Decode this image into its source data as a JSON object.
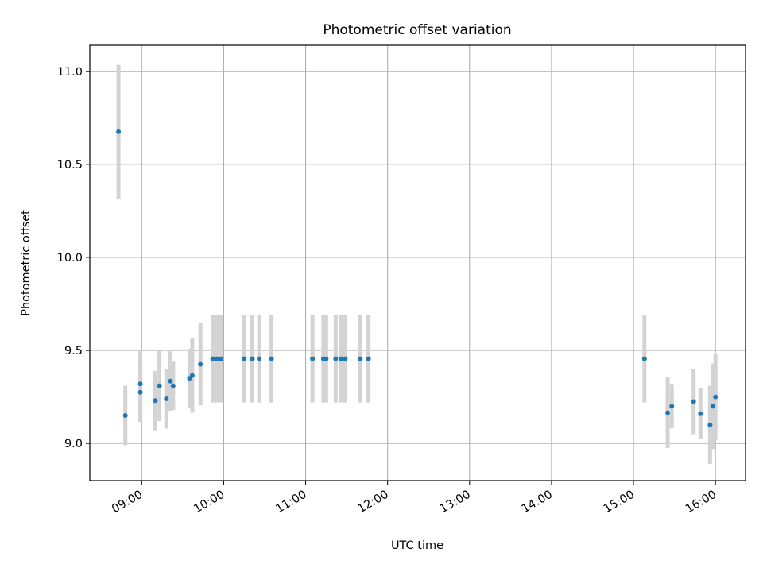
{
  "chart_data": {
    "type": "scatter",
    "title": "Photometric offset variation",
    "xlabel": "UTC time",
    "ylabel": "Photometric offset",
    "ylim": [
      8.8,
      11.14
    ],
    "xlim": [
      "08:22",
      "16:22"
    ],
    "grid": true,
    "x_ticks": [
      "09:00",
      "10:00",
      "11:00",
      "12:00",
      "13:00",
      "14:00",
      "15:00",
      "16:00"
    ],
    "y_ticks": [
      9.0,
      9.5,
      10.0,
      10.5,
      11.0
    ],
    "y_tick_labels": [
      "9.0",
      "9.5",
      "10.0",
      "10.5",
      "11.0"
    ],
    "marker_color": "#1f77b4",
    "errorbar_color": "#d3d3d3",
    "points": [
      {
        "t": "08:43",
        "y": 10.675,
        "err": 0.36
      },
      {
        "t": "08:48",
        "y": 9.15,
        "err": 0.16
      },
      {
        "t": "08:59",
        "y": 9.32,
        "err": 0.18
      },
      {
        "t": "08:59",
        "y": 9.275,
        "err": 0.16
      },
      {
        "t": "09:10",
        "y": 9.23,
        "err": 0.16
      },
      {
        "t": "09:13",
        "y": 9.31,
        "err": 0.19
      },
      {
        "t": "09:18",
        "y": 9.24,
        "err": 0.16
      },
      {
        "t": "09:21",
        "y": 9.335,
        "err": 0.16
      },
      {
        "t": "09:23",
        "y": 9.31,
        "err": 0.13
      },
      {
        "t": "09:35",
        "y": 9.35,
        "err": 0.16
      },
      {
        "t": "09:37",
        "y": 9.365,
        "err": 0.2
      },
      {
        "t": "09:43",
        "y": 9.425,
        "err": 0.22
      },
      {
        "t": "09:52",
        "y": 9.455,
        "err": 0.235
      },
      {
        "t": "09:55",
        "y": 9.455,
        "err": 0.235
      },
      {
        "t": "09:58",
        "y": 9.455,
        "err": 0.235
      },
      {
        "t": "10:15",
        "y": 9.455,
        "err": 0.235
      },
      {
        "t": "10:21",
        "y": 9.455,
        "err": 0.235
      },
      {
        "t": "10:26",
        "y": 9.455,
        "err": 0.235
      },
      {
        "t": "10:35",
        "y": 9.455,
        "err": 0.235
      },
      {
        "t": "11:05",
        "y": 9.455,
        "err": 0.235
      },
      {
        "t": "11:13",
        "y": 9.455,
        "err": 0.235
      },
      {
        "t": "11:15",
        "y": 9.455,
        "err": 0.235
      },
      {
        "t": "11:22",
        "y": 9.455,
        "err": 0.235
      },
      {
        "t": "11:26",
        "y": 9.455,
        "err": 0.235
      },
      {
        "t": "11:29",
        "y": 9.455,
        "err": 0.235
      },
      {
        "t": "11:40",
        "y": 9.455,
        "err": 0.235
      },
      {
        "t": "11:46",
        "y": 9.455,
        "err": 0.235
      },
      {
        "t": "15:08",
        "y": 9.455,
        "err": 0.235
      },
      {
        "t": "15:25",
        "y": 9.165,
        "err": 0.19
      },
      {
        "t": "15:28",
        "y": 9.2,
        "err": 0.12
      },
      {
        "t": "15:44",
        "y": 9.225,
        "err": 0.175
      },
      {
        "t": "15:49",
        "y": 9.16,
        "err": 0.135
      },
      {
        "t": "15:56",
        "y": 9.1,
        "err": 0.21
      },
      {
        "t": "15:58",
        "y": 9.2,
        "err": 0.23
      },
      {
        "t": "16:00",
        "y": 9.25,
        "err": 0.23
      }
    ]
  }
}
